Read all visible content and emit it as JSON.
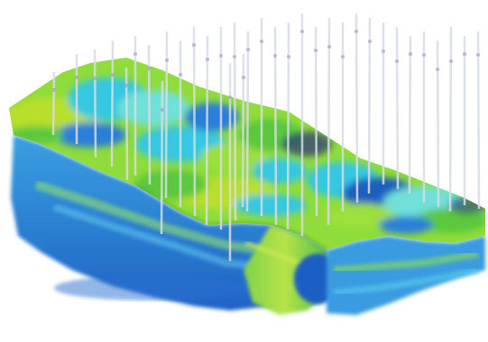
{
  "image": {
    "subject": "3d-reservoir-model-with-wells",
    "colors": {
      "background": "#ffffff",
      "yellow_green": "#b8e02a",
      "green": "#5cc83c",
      "lime": "#9be03a",
      "cyan": "#35c8e0",
      "aqua": "#6fe0d8",
      "blue": "#2a7fd8",
      "deep_blue": "#1f5fbf",
      "navy": "#26307a",
      "well": "#d8dce4"
    }
  }
}
